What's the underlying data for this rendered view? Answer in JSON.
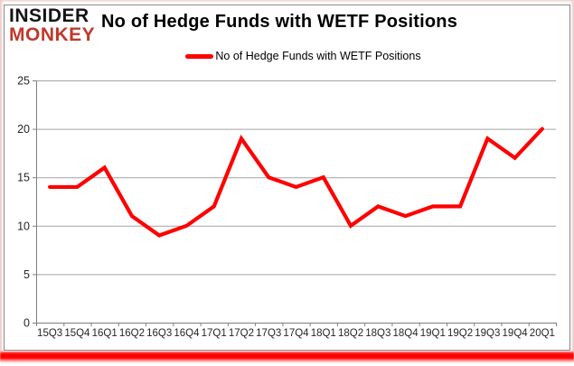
{
  "logo": {
    "line1": "INSIDER",
    "line2": "MONKEY"
  },
  "title": "No of Hedge Funds with WETF Positions",
  "legend": {
    "label": "No of Hedge Funds with WETF Positions"
  },
  "colors": {
    "line_red": "#ff0000",
    "logo_red": "#c0392b",
    "grid_gray": "#a3a3a3",
    "axis_gray": "#7f7f7f",
    "label_text": "#262626",
    "border_gray": "#8a8a8a"
  },
  "chart_data": {
    "type": "line",
    "title": "No of Hedge Funds with WETF Positions",
    "series": [
      {
        "name": "No of Hedge Funds with WETF Positions",
        "values": [
          14,
          14,
          16,
          11,
          9,
          10,
          12,
          19,
          15,
          14,
          15,
          10,
          12,
          11,
          12,
          12,
          19,
          17,
          20
        ]
      }
    ],
    "categories": [
      "15Q3",
      "15Q4",
      "16Q1",
      "16Q2",
      "16Q3",
      "16Q4",
      "17Q1",
      "17Q2",
      "17Q3",
      "17Q4",
      "18Q1",
      "18Q2",
      "18Q3",
      "18Q4",
      "19Q1",
      "19Q2",
      "19Q3",
      "19Q4",
      "20Q1"
    ],
    "xlabel": "",
    "ylabel": "",
    "ylim": [
      0,
      25
    ],
    "ytick_step": 5,
    "yticks": [
      0,
      5,
      10,
      15,
      20,
      25
    ],
    "grid": true,
    "legend_position": "top",
    "line_color": "#ff0000",
    "grid_color": "#a3a3a3",
    "axis_color": "#7f7f7f",
    "text_color": "#262626"
  }
}
